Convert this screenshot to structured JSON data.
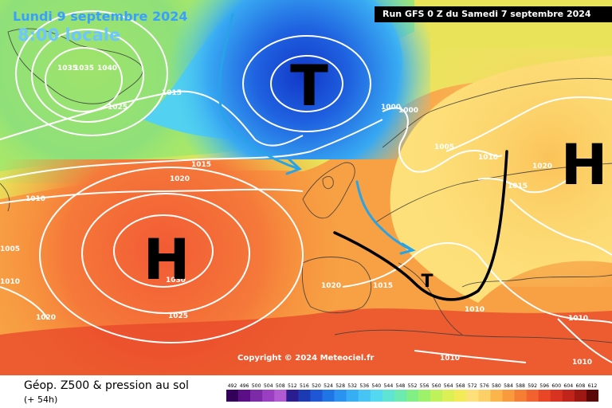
{
  "header": {
    "date": "Lundi 9 septembre 2024",
    "time": "8:00 locale",
    "run": "Run GFS 0 Z du Samedi 7 septembre 2024"
  },
  "copyright": "Copyright © 2024 Meteociel.fr",
  "legend": {
    "product": "Géop. Z500 & pression au sol",
    "lead": "(+ 54h)",
    "ticks": [
      "492",
      "496",
      "500",
      "504",
      "508",
      "512",
      "516",
      "520",
      "524",
      "528",
      "532",
      "536",
      "540",
      "544",
      "548",
      "552",
      "556",
      "560",
      "564",
      "568",
      "572",
      "576",
      "580",
      "584",
      "588",
      "592",
      "596",
      "600",
      "604",
      "608",
      "612"
    ],
    "colors": [
      "#33005a",
      "#5a0f86",
      "#7c2aa8",
      "#9a3fc2",
      "#b15ad2",
      "#2b1d8f",
      "#1d3ab5",
      "#1f56d6",
      "#1f74e6",
      "#2a92f0",
      "#36aef4",
      "#46c4f4",
      "#52d8f0",
      "#5fe3d2",
      "#6ceab0",
      "#7fef86",
      "#9ef26a",
      "#bff15b",
      "#dcef55",
      "#f3ea58",
      "#fde07a",
      "#fdd067",
      "#fbb54a",
      "#f99a3c",
      "#f67e34",
      "#f2622e",
      "#e84626",
      "#d73320",
      "#c0241a",
      "#9d1813",
      "#5a0908"
    ]
  },
  "systems": {
    "low": "T",
    "high_atlantic": "H",
    "high_east": "H",
    "thermal_low": "T"
  },
  "isobars": [
    "1035",
    "1035",
    "1040",
    "1025",
    "1015",
    "1015",
    "1020",
    "1010",
    "1000",
    "1000",
    "1005",
    "1010",
    "1015",
    "1020",
    "1030",
    "1020",
    "1015",
    "1025",
    "1020",
    "1010",
    "1010",
    "1010",
    "1010",
    "1010",
    "1005"
  ],
  "colors": {
    "isobar": "#ffffff",
    "arrow": "#27a3e8",
    "front": "#000000"
  }
}
